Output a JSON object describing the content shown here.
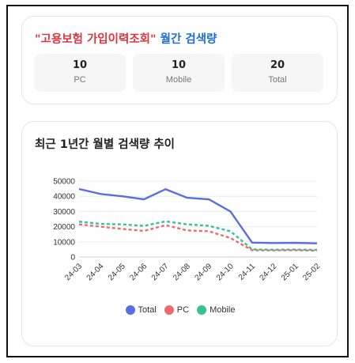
{
  "summary": {
    "keyword": "\"고용보험 가입이력조회\"",
    "title_suffix": "월간 검색량",
    "stats": [
      {
        "value": "10",
        "label": "PC"
      },
      {
        "value": "10",
        "label": "Mobile"
      },
      {
        "value": "20",
        "label": "Total"
      }
    ]
  },
  "trend": {
    "title": "최근 1년간 월별 검색량 추이"
  },
  "chart_data": {
    "type": "line",
    "categories": [
      "24-03",
      "24-04",
      "24-05",
      "24-06",
      "24-07",
      "24-08",
      "24-09",
      "24-10",
      "24-11",
      "24-12",
      "25-01",
      "25-02"
    ],
    "series": [
      {
        "name": "Total",
        "color": "#5b6ee1",
        "dashed": false,
        "values": [
          44800,
          41500,
          40000,
          38000,
          44700,
          39000,
          38000,
          30000,
          9500,
          9200,
          9300,
          9000
        ]
      },
      {
        "name": "PC",
        "color": "#ef6b6b",
        "dashed": true,
        "values": [
          21500,
          20000,
          18500,
          17200,
          21000,
          17500,
          17000,
          12500,
          4500,
          4400,
          4500,
          4200
        ]
      },
      {
        "name": "Mobile",
        "color": "#36c28f",
        "dashed": true,
        "values": [
          23300,
          21800,
          21500,
          20500,
          23500,
          21500,
          20500,
          17000,
          5000,
          4800,
          4900,
          4700
        ]
      }
    ],
    "yticks": [
      "0",
      "10000",
      "20000",
      "30000",
      "40000",
      "50000"
    ],
    "ylim": [
      0,
      50000
    ],
    "grid": true,
    "legend": "bottom"
  }
}
